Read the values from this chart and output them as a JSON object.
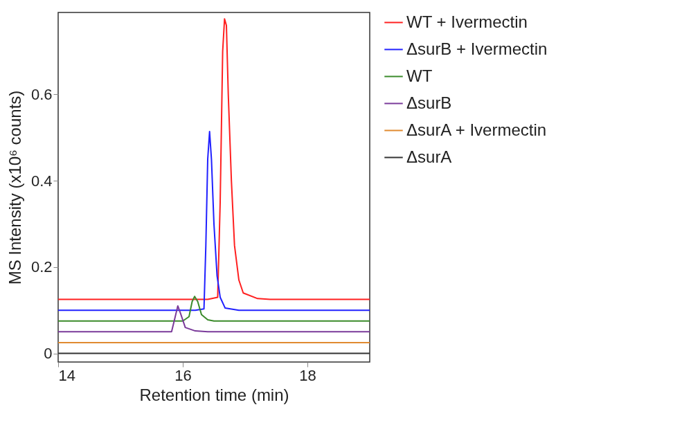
{
  "chart_data": {
    "type": "line",
    "xlabel": "Retention time (min)",
    "ylabel": "MS Intensity (x10⁶ counts)",
    "xlim": [
      14,
      19
    ],
    "xticks": [
      14,
      16,
      18
    ],
    "ylim": [
      -0.02,
      0.79
    ],
    "yticks": [
      0,
      0.2,
      0.4,
      0.6
    ],
    "grid": false,
    "legend": "right",
    "line_style": "solid",
    "marker": "none",
    "series": [
      {
        "name": "WT + Ivermectin",
        "color": "#ff2020",
        "x": [
          14,
          16.4,
          16.56,
          16.6,
          16.64,
          16.67,
          16.7,
          16.73,
          16.78,
          16.83,
          16.9,
          16.97,
          17.2,
          17.4,
          19
        ],
        "values": [
          0.125,
          0.125,
          0.13,
          0.35,
          0.7,
          0.775,
          0.76,
          0.6,
          0.4,
          0.25,
          0.17,
          0.14,
          0.127,
          0.125,
          0.125
        ]
      },
      {
        "name": "ΔsurB + Ivermectin",
        "color": "#2020ff",
        "x": [
          14,
          16.2,
          16.34,
          16.37,
          16.4,
          16.43,
          16.46,
          16.5,
          16.55,
          16.6,
          16.68,
          16.9,
          19
        ],
        "values": [
          0.1,
          0.1,
          0.103,
          0.25,
          0.45,
          0.514,
          0.45,
          0.3,
          0.18,
          0.13,
          0.105,
          0.1,
          0.1
        ]
      },
      {
        "name": "WT",
        "color": "#3a8a2a",
        "x": [
          14,
          16,
          16.1,
          16.15,
          16.19,
          16.24,
          16.3,
          16.4,
          16.5,
          19
        ],
        "values": [
          0.075,
          0.075,
          0.085,
          0.12,
          0.132,
          0.12,
          0.09,
          0.078,
          0.075,
          0.075
        ]
      },
      {
        "name": "ΔsurB",
        "color": "#7a3a9a",
        "x": [
          14,
          15.82,
          15.87,
          15.92,
          15.97,
          16.04,
          16.2,
          16.4,
          19
        ],
        "values": [
          0.05,
          0.05,
          0.08,
          0.11,
          0.09,
          0.06,
          0.052,
          0.05,
          0.05
        ]
      },
      {
        "name": "ΔsurA + Ivermectin",
        "color": "#e08a30",
        "x": [
          14,
          19
        ],
        "values": [
          0.025,
          0.025
        ]
      },
      {
        "name": "ΔsurA",
        "color": "#333333",
        "x": [
          14,
          19
        ],
        "values": [
          0,
          0
        ]
      }
    ]
  }
}
